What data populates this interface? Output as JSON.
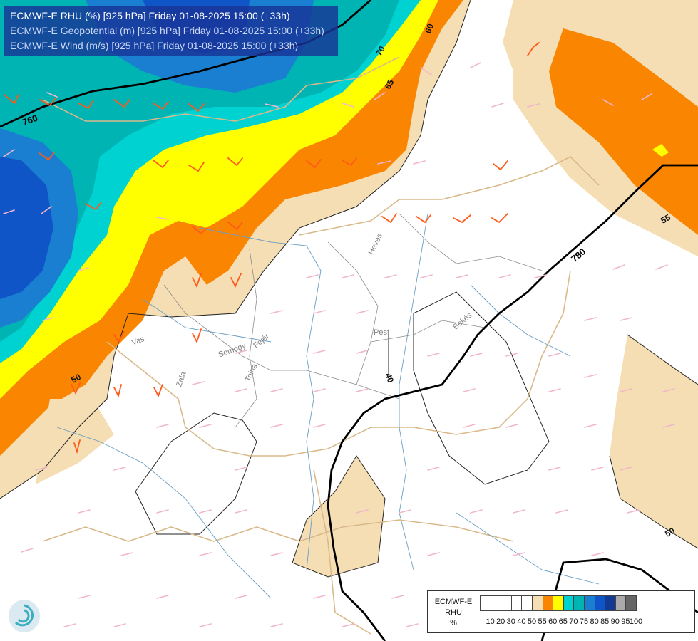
{
  "header": {
    "lines": [
      "ECMWF-E RHU (%) [925 hPa] Friday 01-08-2025 15:00 (+33h)",
      "ECMWF-E Geopotential (m) [925 hPa] Friday 01-08-2025 15:00 (+33h)",
      "ECMWF-E Wind (m/s) [925 hPa] Friday 01-08-2025 15:00 (+33h)"
    ]
  },
  "map": {
    "geopotential_labels": [
      "760",
      "780"
    ],
    "rhu_contour_labels": [
      "70",
      "65",
      "60",
      "55",
      "50",
      "50",
      "40"
    ],
    "place_labels": [
      "Vas",
      "Zala",
      "Somogy",
      "Fejér",
      "Tolna",
      "Pest",
      "Heves",
      "Békés"
    ]
  },
  "legend": {
    "label_lines": [
      "ECMWF-E",
      "RHU",
      "%"
    ],
    "colors": [
      "#ffffff",
      "#ffffff",
      "#ffffff",
      "#ffffff",
      "#ffffff",
      "#f5deb3",
      "#f98500",
      "#ffff00",
      "#00d2d2",
      "#00b4b4",
      "#1a7fd0",
      "#1055c8",
      "#123a92",
      "#aaaaaa",
      "#666666"
    ],
    "ticks": [
      "10",
      "20",
      "30",
      "40",
      "50",
      "55",
      "60",
      "65",
      "70",
      "75",
      "80",
      "85",
      "90",
      "95",
      "100"
    ]
  }
}
